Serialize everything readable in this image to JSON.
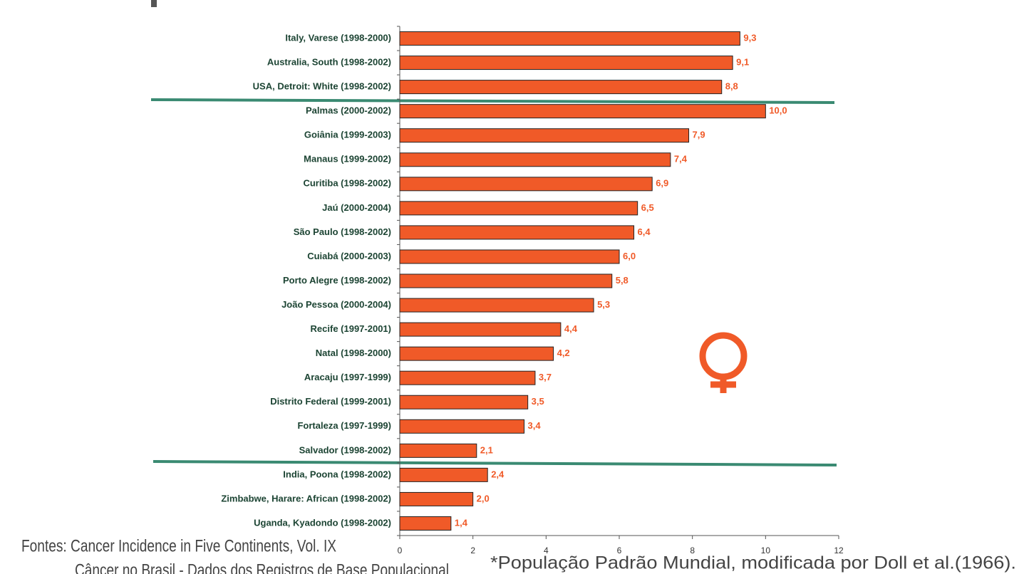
{
  "chart_data": {
    "type": "bar",
    "orientation": "horizontal",
    "categories": [
      "Italy, Varese (1998-2000)",
      "Australia, South (1998-2002)",
      "USA, Detroit: White (1998-2002)",
      "Palmas (2000-2002)",
      "Goiânia (1999-2003)",
      "Manaus (1999-2002)",
      "Curitiba (1998-2002)",
      "Jaú (2000-2004)",
      "São Paulo (1998-2002)",
      "Cuiabá (2000-2003)",
      "Porto Alegre (1998-2002)",
      "João Pessoa (2000-2004)",
      "Recife (1997-2001)",
      "Natal (1998-2000)",
      "Aracaju (1997-1999)",
      "Distrito Federal (1999-2001)",
      "Fortaleza (1997-1999)",
      "Salvador (1998-2002)",
      "India, Poona (1998-2002)",
      "Zimbabwe, Harare: African (1998-2002)",
      "Uganda, Kyadondo (1998-2002)"
    ],
    "values": [
      9.3,
      9.1,
      8.8,
      10.0,
      7.9,
      7.4,
      6.9,
      6.5,
      6.4,
      6.0,
      5.8,
      5.3,
      4.4,
      4.2,
      3.7,
      3.5,
      3.4,
      2.1,
      2.4,
      2.0,
      1.4
    ],
    "value_labels": [
      "9,3",
      "9,1",
      "8,8",
      "10,0",
      "7,9",
      "7,4",
      "6,9",
      "6,5",
      "6,4",
      "6,0",
      "5,8",
      "5,3",
      "4,4",
      "4,2",
      "3,7",
      "3,5",
      "3,4",
      "2,1",
      "2,4",
      "2,0",
      "1,4"
    ],
    "color": "#f05a28",
    "xlim": [
      0,
      12
    ],
    "xticks": [
      0,
      2,
      4,
      6,
      8,
      10,
      12
    ],
    "grid": false,
    "sources": [
      "Fontes: Cancer Incidence in Five Continents, Vol. IX",
      "Câncer no Brasil - Dados dos Registros de Base Populacional"
    ],
    "footnote": "*População Padrão Mundial, modificada por Doll et al.(1966)."
  }
}
